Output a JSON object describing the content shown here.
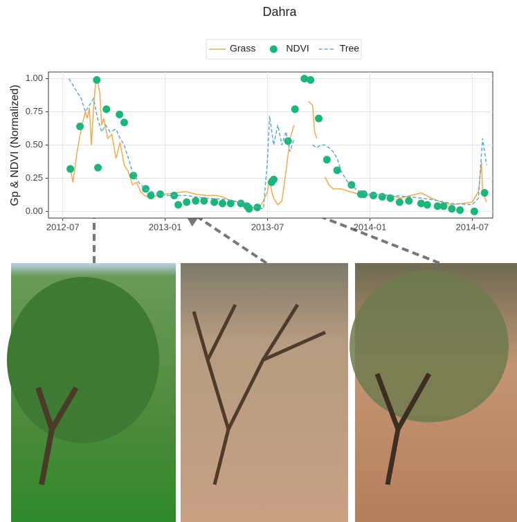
{
  "chart_data": {
    "type": "line",
    "title": "Dahra",
    "y_label": "Gp & NDVI (Normalized)",
    "xlim": [
      2012.43,
      2014.6
    ],
    "xticks": [
      {
        "value": 2012.5,
        "label": "2012-07"
      },
      {
        "value": 2013.0,
        "label": "2013-01"
      },
      {
        "value": 2013.5,
        "label": "2013-07"
      },
      {
        "value": 2014.0,
        "label": "2014-01"
      },
      {
        "value": 2014.5,
        "label": "2014-07"
      }
    ],
    "ylim": [
      -0.05,
      1.05
    ],
    "yticks": [
      {
        "value": 0,
        "label": "0.00"
      },
      0.25,
      {
        "value": 0.5,
        "label": "0.50"
      },
      0.75,
      {
        "value": 1,
        "label": "1.00"
      }
    ],
    "grid": true,
    "series": [
      {
        "name": "Grass",
        "type": "line",
        "dash": false,
        "color": "#f5a94a",
        "x": [
          2012.54,
          2012.55,
          2012.57,
          2012.59,
          2012.61,
          2012.62,
          2012.63,
          2012.64,
          2012.65,
          2012.66,
          2012.67,
          2012.68,
          2012.69,
          2012.7,
          2012.71,
          2012.72,
          2012.74,
          2012.76,
          2012.78,
          2012.8,
          2012.82,
          2012.84,
          2012.86,
          2012.88,
          2012.9,
          2012.93,
          2012.96,
          2013.0,
          2013.05,
          2013.1,
          2013.15,
          2013.2,
          2013.25,
          2013.28,
          2013.32,
          2013.36,
          2013.4,
          2013.43,
          2013.46,
          2013.48,
          2013.5,
          2013.51,
          2013.52,
          2013.53,
          2013.55,
          2013.57,
          2013.59,
          2013.61,
          2013.63,
          2013.66,
          2013.7,
          2013.72,
          2013.73,
          2013.74,
          2013.76,
          2013.78,
          2013.8,
          2013.82,
          2013.86,
          2013.9,
          2013.95,
          2014.0,
          2014.05,
          2014.1,
          2014.15,
          2014.2,
          2014.25,
          2014.3,
          2014.35,
          2014.4,
          2014.45,
          2014.5,
          2014.53,
          2014.545,
          2014.55,
          2014.57
        ],
        "values": [
          0.3,
          0.22,
          0.45,
          0.62,
          0.75,
          0.7,
          0.78,
          0.5,
          0.77,
          0.96,
          0.98,
          0.9,
          0.65,
          0.7,
          0.62,
          0.55,
          0.58,
          0.4,
          0.52,
          0.35,
          0.3,
          0.2,
          0.22,
          0.15,
          0.12,
          0.1,
          0.12,
          0.13,
          0.14,
          0.15,
          0.13,
          0.12,
          0.12,
          0.11,
          0.08,
          0.07,
          0.05,
          0.03,
          0.03,
          0.08,
          0.15,
          0.25,
          0.15,
          0.1,
          0.05,
          0.08,
          0.3,
          0.55,
          0.65,
          null,
          0.83,
          0.8,
          0.6,
          0.55,
          null,
          0.26,
          0.2,
          0.17,
          0.17,
          0.15,
          0.13,
          0.12,
          0.13,
          0.12,
          0.1,
          0.12,
          0.14,
          0.1,
          0.07,
          0.05,
          0.06,
          0.07,
          0.15,
          0.37,
          0.15,
          0.07
        ]
      },
      {
        "name": "NDVI",
        "type": "scatter",
        "dash": false,
        "color": "#1ab77a",
        "x": [
          2012.537,
          2012.584,
          2012.666,
          2012.672,
          2012.713,
          2012.777,
          2012.8,
          2012.845,
          2012.905,
          2012.93,
          2012.976,
          2013.044,
          2013.064,
          2013.105,
          2013.149,
          2013.19,
          2013.24,
          2013.28,
          2013.32,
          2013.37,
          2013.4,
          2013.41,
          2013.45,
          2013.52,
          2013.53,
          2013.6,
          2013.634,
          2013.68,
          2013.71,
          2013.75,
          2013.79,
          2013.84,
          2013.91,
          2013.956,
          2013.97,
          2014.017,
          2014.06,
          2014.1,
          2014.145,
          2014.19,
          2014.25,
          2014.28,
          2014.33,
          2014.36,
          2014.4,
          2014.44,
          2014.51,
          2014.56
        ],
        "values": [
          0.32,
          0.64,
          0.99,
          0.33,
          0.77,
          0.73,
          0.67,
          0.27,
          0.17,
          0.12,
          0.13,
          0.12,
          0.05,
          0.07,
          0.08,
          0.08,
          0.07,
          0.06,
          0.06,
          0.06,
          0.04,
          0.02,
          0.03,
          0.22,
          0.24,
          0.53,
          0.77,
          1.0,
          0.99,
          0.7,
          0.39,
          0.31,
          0.2,
          0.13,
          0.13,
          0.12,
          0.11,
          0.1,
          0.07,
          0.08,
          0.06,
          0.05,
          0.04,
          0.04,
          0.02,
          0.01,
          0.0,
          0.14
        ]
      },
      {
        "name": "Tree",
        "type": "line",
        "dash": true,
        "color": "#5aa9d6",
        "x": [
          2012.53,
          2012.55,
          2012.57,
          2012.59,
          2012.61,
          2012.63,
          2012.65,
          2012.67,
          2012.69,
          2012.71,
          2012.73,
          2012.76,
          2012.78,
          2012.8,
          2012.82,
          2012.84,
          2012.87,
          2012.9,
          2012.95,
          2013.0,
          2013.1,
          2013.2,
          2013.3,
          2013.4,
          2013.45,
          2013.48,
          2013.5,
          2013.51,
          2013.53,
          2013.55,
          2013.57,
          2013.59,
          2013.61,
          2013.63,
          2013.68,
          2013.72,
          2013.74,
          2013.76,
          2013.78,
          2013.8,
          2013.82,
          2013.84,
          2013.86,
          2013.88,
          2013.9,
          2013.95,
          2014.0,
          2014.1,
          2014.2,
          2014.3,
          2014.4,
          2014.5,
          2014.53,
          2014.55,
          2014.57
        ],
        "values": [
          1.0,
          0.95,
          0.9,
          0.85,
          0.75,
          0.8,
          0.85,
          0.7,
          0.6,
          0.65,
          0.6,
          0.62,
          0.55,
          0.5,
          0.4,
          0.3,
          0.22,
          0.17,
          0.14,
          0.12,
          0.12,
          0.1,
          0.09,
          0.06,
          0.03,
          0.02,
          0.4,
          0.72,
          0.5,
          0.65,
          0.5,
          0.6,
          0.45,
          0.55,
          null,
          0.5,
          0.48,
          0.5,
          0.5,
          0.48,
          0.45,
          0.4,
          0.3,
          0.25,
          0.2,
          0.15,
          0.13,
          0.12,
          0.11,
          0.09,
          0.06,
          0.05,
          0.1,
          0.55,
          0.35
        ]
      }
    ]
  }
}
